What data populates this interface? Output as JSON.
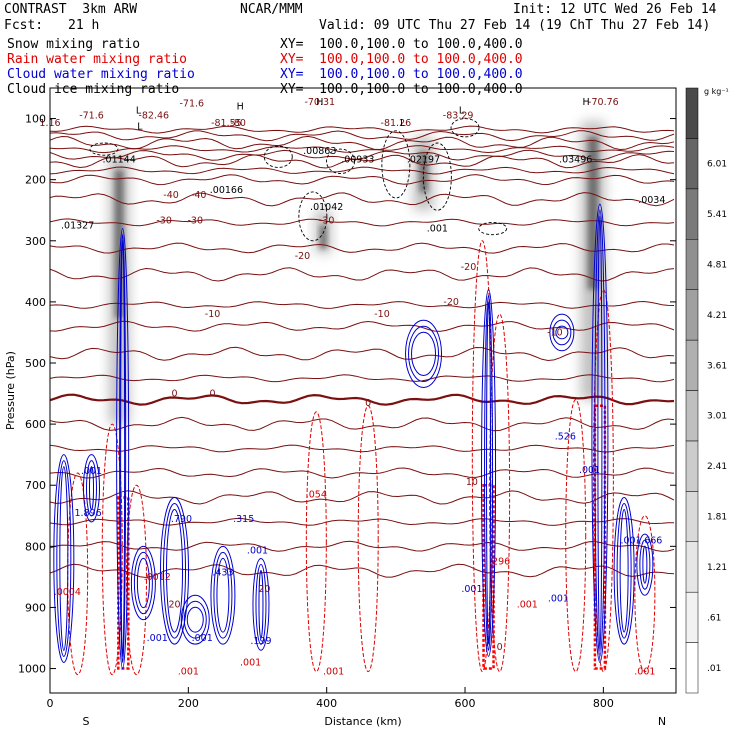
{
  "header": {
    "model": "CONTRAST  3km ARW",
    "center": "NCAR/MMM",
    "init": "Init: 12 UTC Wed 26 Feb 14",
    "fcst_label": "Fcst:",
    "fcst_value": "21 h",
    "valid": "Valid: 09 UTC Thu 27 Feb 14 (19 ChT Thu 27 Feb 14)"
  },
  "fields": [
    {
      "name": "Snow mixing ratio",
      "xy": "XY=  100.0,100.0 to 100.0,400.0",
      "color": "#000000"
    },
    {
      "name": "Rain water mixing ratio",
      "xy": "XY=  100.0,100.0 to 100.0,400.0",
      "color": "#e00000"
    },
    {
      "name": "Cloud water mixing ratio",
      "xy": "XY=  100.0,100.0 to 100.0,400.0",
      "color": "#0000d0"
    },
    {
      "name": "Cloud ice mixing ratio",
      "xy": "XY=  100.0,100.0 to 100.0,400.0",
      "color": "#000000"
    }
  ],
  "chart_data": {
    "type": "heatmap",
    "title": "",
    "xlabel": "Distance (km)",
    "ylabel": "Pressure (hPa)",
    "xlim": [
      0,
      905
    ],
    "ylim": [
      50,
      1040
    ],
    "y_scale": "linear, inverted",
    "x_ticks": [
      0,
      200,
      400,
      600,
      800
    ],
    "y_ticks": [
      100,
      200,
      300,
      400,
      500,
      600,
      700,
      800,
      900,
      1000
    ],
    "x_end_labels": {
      "left": "S",
      "right": "N"
    },
    "colorbar": {
      "unit": "g kg⁻¹",
      "ticks": [
        ".01",
        ".61",
        "1.21",
        "1.81",
        "2.41",
        "3.01",
        "3.61",
        "4.21",
        "4.81",
        "5.41",
        "6.01"
      ],
      "colors": [
        "#ffffff",
        "#f2f2f2",
        "#e6e6e6",
        "#d9d9d9",
        "#cccccc",
        "#bfbfbf",
        "#b0b0b0",
        "#a0a0a0",
        "#909090",
        "#7a7a7a",
        "#656565",
        "#4a4a4a"
      ]
    },
    "temperature_isotherms_C": [
      -80,
      -70,
      -60,
      -50,
      -40,
      -30,
      -20,
      -10,
      0,
      10,
      20
    ],
    "temperature_labels": [
      {
        "x": 60,
        "p": 100,
        "text": "-71.6"
      },
      {
        "x": 150,
        "p": 100,
        "text": "-82.46"
      },
      {
        "x": 255,
        "p": 112,
        "text": "-81.55"
      },
      {
        "x": 205,
        "p": 80,
        "text": "-71.6"
      },
      {
        "x": 390,
        "p": 78,
        "text": "-70.31"
      },
      {
        "x": 500,
        "p": 112,
        "text": "-81.26"
      },
      {
        "x": 590,
        "p": 100,
        "text": "-83.29"
      },
      {
        "x": 800,
        "p": 78,
        "text": "-70.76"
      },
      {
        "x": 0,
        "p": 112,
        "text": "1.16"
      },
      {
        "x": 272,
        "p": 112,
        "text": "-80"
      },
      {
        "x": 175,
        "p": 230,
        "text": "-40"
      },
      {
        "x": 215,
        "p": 230,
        "text": "-40"
      },
      {
        "x": 165,
        "p": 272,
        "text": "-30"
      },
      {
        "x": 210,
        "p": 272,
        "text": "-30"
      },
      {
        "x": 400,
        "p": 272,
        "text": "-30"
      },
      {
        "x": 365,
        "p": 330,
        "text": "-20"
      },
      {
        "x": 605,
        "p": 348,
        "text": "-20"
      },
      {
        "x": 580,
        "p": 405,
        "text": "-20"
      },
      {
        "x": 235,
        "p": 425,
        "text": "-10"
      },
      {
        "x": 480,
        "p": 425,
        "text": "-10"
      },
      {
        "x": 730,
        "p": 455,
        "text": "-10"
      },
      {
        "x": 180,
        "p": 555,
        "text": "0"
      },
      {
        "x": 235,
        "p": 555,
        "text": "0"
      },
      {
        "x": 460,
        "p": 570,
        "text": "0"
      },
      {
        "x": 610,
        "p": 700,
        "text": "10"
      },
      {
        "x": 310,
        "p": 875,
        "text": "20"
      },
      {
        "x": 180,
        "p": 900,
        "text": "20"
      },
      {
        "x": 650,
        "p": 970,
        "text": "0"
      }
    ],
    "H_L_labels": [
      {
        "x": 130,
        "p": 118,
        "text": "L"
      },
      {
        "x": 128,
        "p": 92,
        "text": "L"
      },
      {
        "x": 275,
        "p": 85,
        "text": "H"
      },
      {
        "x": 390,
        "p": 78,
        "text": "H"
      },
      {
        "x": 510,
        "p": 112,
        "text": "L"
      },
      {
        "x": 595,
        "p": 92,
        "text": "L"
      },
      {
        "x": 775,
        "p": 78,
        "text": "H"
      }
    ],
    "cloud_ice_labels": [
      {
        "x": 100,
        "p": 172,
        "text": ".01144"
      },
      {
        "x": 390,
        "p": 158,
        "text": ".00863"
      },
      {
        "x": 445,
        "p": 172,
        "text": ".00933"
      },
      {
        "x": 540,
        "p": 172,
        "text": ".02197"
      },
      {
        "x": 760,
        "p": 172,
        "text": ".03496"
      },
      {
        "x": 255,
        "p": 222,
        "text": ".00166"
      },
      {
        "x": 400,
        "p": 250,
        "text": ".01042"
      },
      {
        "x": 870,
        "p": 238,
        "text": ".0034"
      },
      {
        "x": 40,
        "p": 280,
        "text": ".01327"
      },
      {
        "x": 560,
        "p": 285,
        "text": ".001"
      }
    ],
    "cloud_water_labels": [
      {
        "x": 60,
        "p": 682,
        "text": ".001"
      },
      {
        "x": 55,
        "p": 750,
        "text": "1.896"
      },
      {
        "x": 190,
        "p": 760,
        "text": ".790"
      },
      {
        "x": 280,
        "p": 760,
        "text": ".315"
      },
      {
        "x": 250,
        "p": 848,
        "text": ".433"
      },
      {
        "x": 300,
        "p": 812,
        "text": ".001"
      },
      {
        "x": 305,
        "p": 960,
        "text": ".199"
      },
      {
        "x": 745,
        "p": 625,
        "text": ".526"
      },
      {
        "x": 780,
        "p": 680,
        "text": ".001"
      },
      {
        "x": 840,
        "p": 795,
        "text": ".001"
      },
      {
        "x": 870,
        "p": 795,
        "text": ".666"
      },
      {
        "x": 155,
        "p": 955,
        "text": ".001"
      },
      {
        "x": 220,
        "p": 955,
        "text": ".001"
      },
      {
        "x": 610,
        "p": 875,
        "text": ".001"
      },
      {
        "x": 735,
        "p": 890,
        "text": ".001"
      }
    ],
    "rain_water_labels": [
      {
        "x": 25,
        "p": 880,
        "text": ".0004"
      },
      {
        "x": 155,
        "p": 855,
        "text": ".0012"
      },
      {
        "x": 385,
        "p": 720,
        "text": ".054"
      },
      {
        "x": 650,
        "p": 830,
        "text": ".296"
      },
      {
        "x": 290,
        "p": 995,
        "text": ".001"
      },
      {
        "x": 200,
        "p": 1010,
        "text": ".001"
      },
      {
        "x": 410,
        "p": 1010,
        "text": ".001"
      },
      {
        "x": 690,
        "p": 900,
        "text": ".001"
      },
      {
        "x": 860,
        "p": 1010,
        "text": ".001"
      }
    ]
  }
}
